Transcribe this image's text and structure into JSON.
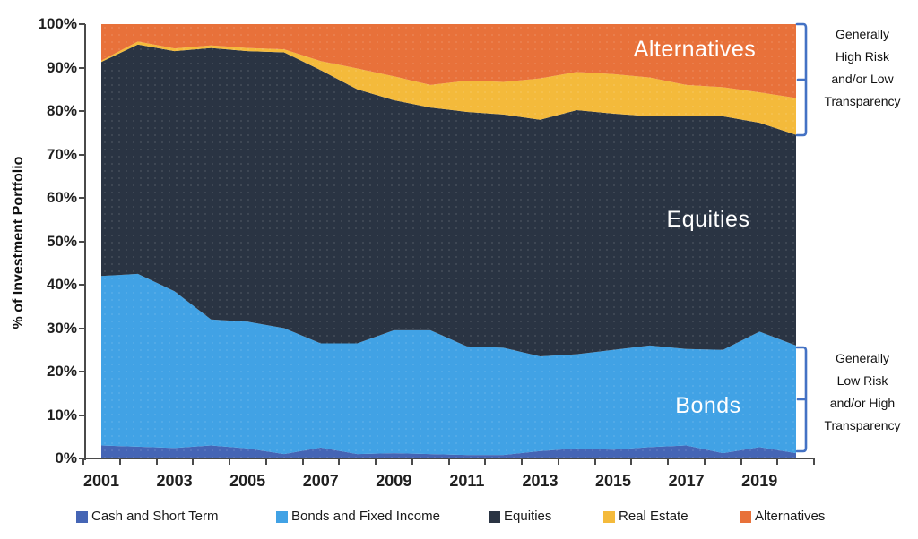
{
  "colors": {
    "bracket_accent": "#4472C4",
    "axis": "#4a4a4a",
    "background": "#FFFFFF",
    "region_label_text": "#FFFFFF"
  },
  "y_axis": {
    "title": "% of Investment Portfolio",
    "tick_labels": [
      "100%",
      "90%",
      "80%",
      "70%",
      "60%",
      "50%",
      "40%",
      "30%",
      "20%",
      "10%",
      "0%"
    ]
  },
  "x_axis": {
    "tick_labels": [
      "2001",
      "2003",
      "2005",
      "2007",
      "2009",
      "2011",
      "2013",
      "2015",
      "2017",
      "2019"
    ]
  },
  "annotations": {
    "high_risk": "Generally\nHigh Risk\nand/or Low\nTransparency",
    "low_risk": "Generally\nLow Risk\nand/or High\nTransparency"
  },
  "chart_data": {
    "type": "area",
    "stacked": true,
    "ylabel": "% of Investment Portfolio",
    "ylim": [
      0,
      100
    ],
    "grid": false,
    "legend_position": "bottom",
    "x": [
      2001,
      2002,
      2003,
      2004,
      2005,
      2006,
      2007,
      2008,
      2009,
      2010,
      2011,
      2012,
      2013,
      2014,
      2015,
      2016,
      2017,
      2018,
      2019,
      2020
    ],
    "x_tick_labels": [
      "2001",
      "2003",
      "2005",
      "2007",
      "2009",
      "2011",
      "2013",
      "2015",
      "2017",
      "2019"
    ],
    "y_tick_labels_top_to_bottom": [
      "100%",
      "90%",
      "80%",
      "70%",
      "60%",
      "50%",
      "40%",
      "30%",
      "20%",
      "10%",
      "0%"
    ],
    "region_labels": [
      "Alternatives",
      "Equities",
      "Bonds"
    ],
    "series": [
      {
        "name": "Cash and Short Term",
        "color": "#4565B5",
        "values": [
          3.0,
          2.7,
          2.4,
          3.0,
          2.3,
          1.0,
          2.5,
          1.0,
          1.2,
          1.0,
          0.8,
          0.8,
          1.7,
          2.3,
          2.0,
          2.6,
          3.0,
          1.2,
          2.6,
          1.2
        ]
      },
      {
        "name": "Bonds and Fixed Income",
        "color": "#41A2E5",
        "values": [
          39.0,
          39.8,
          36.1,
          29.0,
          29.2,
          29.0,
          24.0,
          25.5,
          28.3,
          28.5,
          25.0,
          24.7,
          21.8,
          21.7,
          23.0,
          23.4,
          22.2,
          23.8,
          26.6,
          24.8
        ]
      },
      {
        "name": "Equities",
        "color": "#2A3443",
        "values": [
          49.3,
          52.8,
          55.3,
          62.5,
          62.3,
          63.5,
          62.9,
          58.5,
          53.0,
          51.3,
          54.0,
          53.7,
          54.5,
          56.2,
          54.4,
          52.8,
          53.6,
          53.8,
          48.1,
          48.5
        ]
      },
      {
        "name": "Real Estate",
        "color": "#F4BA3B",
        "values": [
          0.3,
          0.7,
          0.6,
          0.6,
          0.7,
          0.7,
          2.1,
          4.8,
          5.5,
          5.2,
          7.2,
          7.5,
          9.5,
          8.8,
          9.1,
          8.9,
          7.2,
          6.7,
          7.0,
          8.5
        ]
      },
      {
        "name": "Alternatives",
        "color": "#E8713A",
        "values": [
          8.4,
          4.0,
          5.6,
          4.9,
          5.5,
          5.8,
          8.5,
          10.2,
          12.0,
          14.0,
          13.0,
          13.3,
          12.5,
          11.0,
          11.5,
          12.3,
          14.0,
          14.5,
          15.7,
          17.0
        ]
      }
    ]
  }
}
